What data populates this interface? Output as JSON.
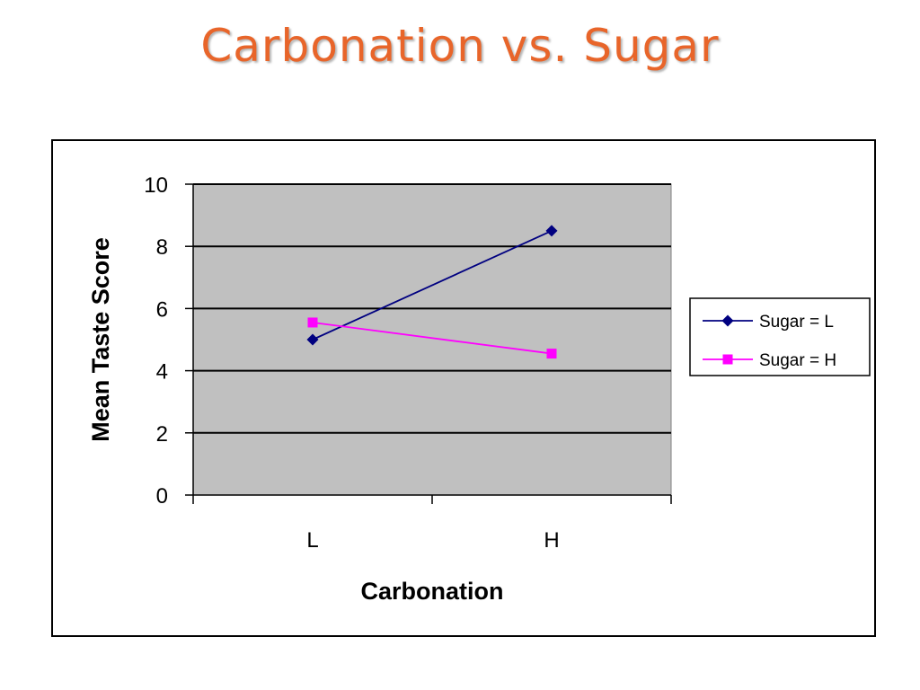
{
  "slide": {
    "title": "Carbonation vs. Sugar"
  },
  "colors": {
    "title": "#e8652a",
    "plot_bg": "#c0c0c0",
    "series1": "#000080",
    "series2": "#ff00ff"
  },
  "chart_data": {
    "type": "line",
    "title": "",
    "xlabel": "Carbonation",
    "ylabel": "Mean Taste Score",
    "categories": [
      "L",
      "H"
    ],
    "ylim": [
      0,
      10
    ],
    "yticks": [
      "0",
      "2",
      "4",
      "6",
      "8",
      "10"
    ],
    "grid": true,
    "legend_position": "right",
    "series": [
      {
        "name": "Sugar = L",
        "values": [
          5.0,
          8.5
        ],
        "color": "#000080",
        "marker": "diamond"
      },
      {
        "name": "Sugar = H",
        "values": [
          5.55,
          4.55
        ],
        "color": "#ff00ff",
        "marker": "square"
      }
    ]
  }
}
